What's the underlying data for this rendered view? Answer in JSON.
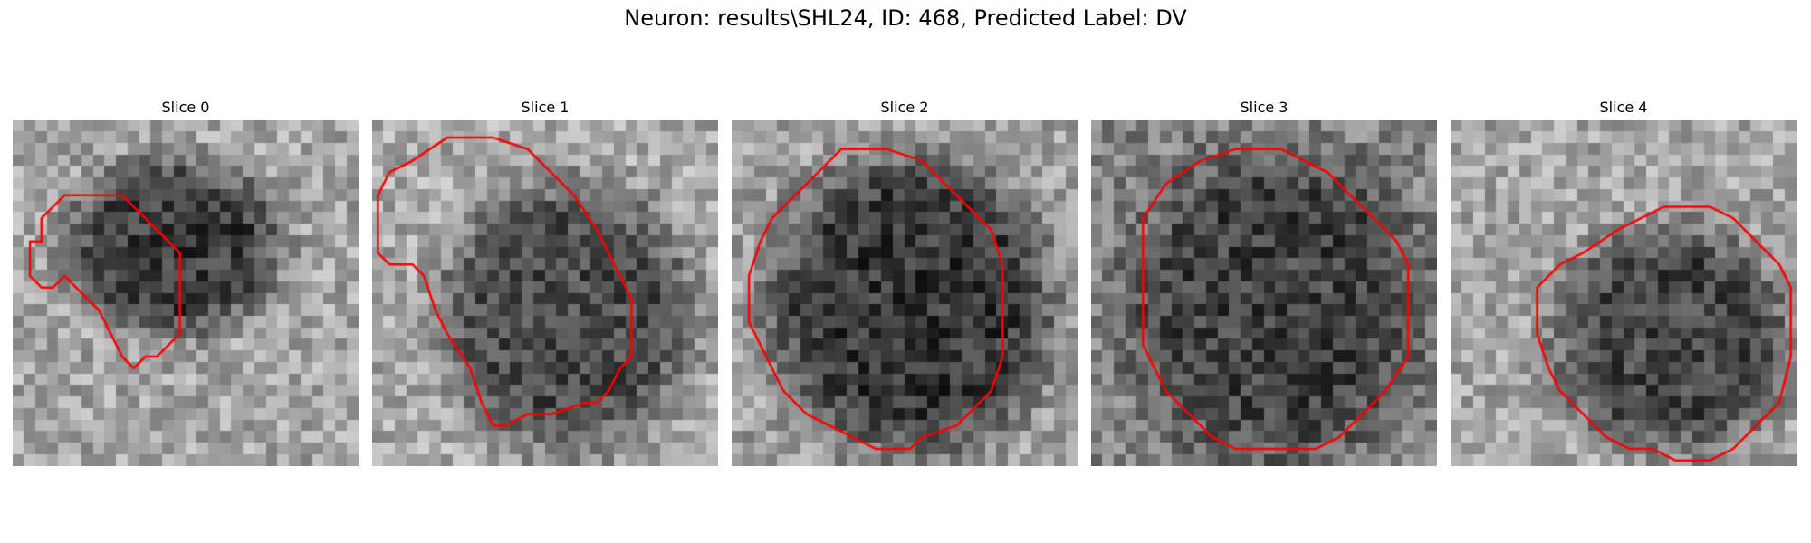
{
  "figure": {
    "title": "Neuron: results\\SHL24, ID: 468, Predicted Label: DV"
  },
  "contour_color": "#ff0000",
  "slices": [
    {
      "title": "Slice 0",
      "pattern": "partial-blob",
      "contour": [
        [
          2,
          10
        ],
        [
          2,
          8
        ],
        [
          4,
          6
        ],
        [
          5,
          6
        ],
        [
          7,
          6
        ],
        [
          9,
          6
        ],
        [
          11,
          8
        ],
        [
          13,
          10
        ],
        [
          14,
          11
        ],
        [
          14,
          18
        ],
        [
          12,
          20
        ],
        [
          11,
          20
        ],
        [
          10,
          21
        ],
        [
          9,
          20
        ],
        [
          8,
          18
        ],
        [
          7,
          16
        ],
        [
          5,
          14
        ],
        [
          4,
          13
        ],
        [
          3,
          14
        ],
        [
          2,
          14
        ],
        [
          1,
          13
        ],
        [
          1,
          10
        ]
      ]
    },
    {
      "title": "Slice 1",
      "pattern": "offset-blob",
      "contour": [
        [
          1,
          4
        ],
        [
          3,
          3
        ],
        [
          6,
          1
        ],
        [
          8,
          1
        ],
        [
          10,
          1
        ],
        [
          13,
          2
        ],
        [
          15,
          4
        ],
        [
          17,
          6
        ],
        [
          19,
          9
        ],
        [
          20,
          11
        ],
        [
          21,
          13
        ],
        [
          22,
          15
        ],
        [
          22,
          20
        ],
        [
          21,
          21
        ],
        [
          20,
          23
        ],
        [
          19,
          24
        ],
        [
          18,
          24
        ],
        [
          15,
          25
        ],
        [
          13,
          25
        ],
        [
          11,
          26
        ],
        [
          10,
          26
        ],
        [
          9,
          24
        ],
        [
          8,
          21
        ],
        [
          6,
          18
        ],
        [
          5,
          16
        ],
        [
          4,
          13
        ],
        [
          3,
          12
        ],
        [
          2,
          12
        ],
        [
          1,
          12
        ],
        [
          0,
          11
        ],
        [
          0,
          9
        ],
        [
          0,
          6
        ]
      ]
    },
    {
      "title": "Slice 2",
      "pattern": "centered-blob",
      "contour": [
        [
          3,
          8
        ],
        [
          5,
          6
        ],
        [
          7,
          4
        ],
        [
          9,
          2
        ],
        [
          13,
          2
        ],
        [
          16,
          3
        ],
        [
          18,
          5
        ],
        [
          20,
          7
        ],
        [
          22,
          9
        ],
        [
          23,
          12
        ],
        [
          23,
          20
        ],
        [
          22,
          23
        ],
        [
          21,
          24
        ],
        [
          19,
          26
        ],
        [
          16,
          27
        ],
        [
          15,
          28
        ],
        [
          12,
          28
        ],
        [
          10,
          27
        ],
        [
          8,
          26
        ],
        [
          6,
          25
        ],
        [
          4,
          23
        ],
        [
          3,
          21
        ],
        [
          2,
          19
        ],
        [
          1,
          17
        ],
        [
          1,
          13
        ],
        [
          2,
          10
        ]
      ]
    },
    {
      "title": "Slice 3",
      "pattern": "dark-noisy-blob",
      "contour": [
        [
          4,
          8
        ],
        [
          6,
          5
        ],
        [
          9,
          3
        ],
        [
          12,
          2
        ],
        [
          16,
          2
        ],
        [
          18,
          3
        ],
        [
          20,
          4
        ],
        [
          22,
          6
        ],
        [
          24,
          8
        ],
        [
          26,
          10
        ],
        [
          27,
          12
        ],
        [
          27,
          20
        ],
        [
          25,
          23
        ],
        [
          23,
          25
        ],
        [
          21,
          27
        ],
        [
          19,
          28
        ],
        [
          14,
          28
        ],
        [
          12,
          28
        ],
        [
          10,
          27
        ],
        [
          8,
          25
        ],
        [
          6,
          23
        ],
        [
          5,
          21
        ],
        [
          4,
          19
        ],
        [
          4,
          15
        ],
        [
          4,
          11
        ]
      ]
    },
    {
      "title": "Slice 4",
      "pattern": "lower-right-blob",
      "contour": [
        [
          11,
          11
        ],
        [
          14,
          9
        ],
        [
          16,
          8
        ],
        [
          18,
          7
        ],
        [
          20,
          7
        ],
        [
          22,
          7
        ],
        [
          24,
          8
        ],
        [
          26,
          10
        ],
        [
          28,
          12
        ],
        [
          29,
          14
        ],
        [
          29,
          20
        ],
        [
          28,
          24
        ],
        [
          26,
          26
        ],
        [
          24,
          28
        ],
        [
          22,
          29
        ],
        [
          19,
          29
        ],
        [
          17,
          28
        ],
        [
          15,
          28
        ],
        [
          13,
          27
        ],
        [
          11,
          25
        ],
        [
          9,
          23
        ],
        [
          8,
          21
        ],
        [
          7,
          18
        ],
        [
          7,
          14
        ],
        [
          9,
          12
        ]
      ]
    }
  ]
}
